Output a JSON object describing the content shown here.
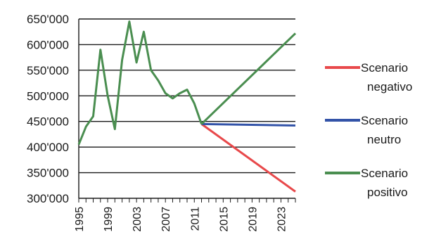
{
  "chart_data": {
    "type": "line",
    "title": "",
    "xlabel": "",
    "ylabel": "",
    "xlim": [
      1995,
      2025
    ],
    "ylim": [
      300000,
      650000
    ],
    "y_ticks": [
      "300'000",
      "350'000",
      "400'000",
      "450'000",
      "500'000",
      "550'000",
      "600'000",
      "650'000"
    ],
    "x_tick_labels": [
      "1995",
      "1999",
      "2003",
      "2007",
      "2011",
      "2015",
      "2019",
      "2023"
    ],
    "grid": "horizontal",
    "legend_position": "right",
    "history": {
      "x": [
        1995,
        1996,
        1997,
        1998,
        1999,
        2000,
        2001,
        2002,
        2003,
        2004,
        2005,
        2006,
        2007,
        2008,
        2009,
        2010,
        2011,
        2012
      ],
      "y": [
        405000,
        440000,
        460000,
        590000,
        500000,
        435000,
        570000,
        645000,
        565000,
        625000,
        550000,
        530000,
        505000,
        495000,
        505000,
        512000,
        485000,
        445000
      ],
      "color": "#4a8e50"
    },
    "series": [
      {
        "name": "Scenario negativo",
        "x": [
          2012,
          2025
        ],
        "y": [
          445000,
          313000
        ],
        "color": "#e8494b"
      },
      {
        "name": "Scenario neutro",
        "x": [
          2012,
          2025
        ],
        "y": [
          445000,
          442000
        ],
        "color": "#3353a8"
      },
      {
        "name": "Scenario positivo",
        "x": [
          2012,
          2025
        ],
        "y": [
          445000,
          622000
        ],
        "color": "#4a8e50"
      }
    ],
    "legend": [
      {
        "line1": "Scenario",
        "line2": "negativo",
        "color": "#e8494b"
      },
      {
        "line1": "Scenario",
        "line2": "neutro",
        "color": "#3353a8"
      },
      {
        "line1": "Scenario",
        "line2": "positivo",
        "color": "#4a8e50"
      }
    ]
  }
}
